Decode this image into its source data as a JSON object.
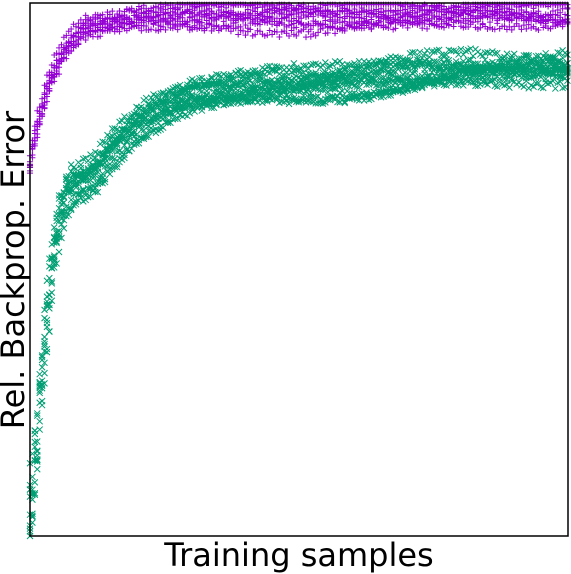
{
  "chart_data": {
    "type": "scatter",
    "title": "",
    "xlabel": "Training samples",
    "ylabel": "Rel. Backprop. Error",
    "x_ticks": [],
    "y_ticks": [],
    "grid": false,
    "legend": "none",
    "xlim": [
      0,
      100
    ],
    "ylim": [
      0,
      100
    ],
    "series": [
      {
        "marker": "plus",
        "color": "#9400D3",
        "runs": 8,
        "curve": [
          [
            0,
            70
          ],
          [
            1,
            76
          ],
          [
            2,
            80
          ],
          [
            3,
            84
          ],
          [
            4,
            87
          ],
          [
            6,
            91
          ],
          [
            8,
            94
          ],
          [
            10,
            96
          ],
          [
            15,
            97
          ],
          [
            20,
            97.5
          ],
          [
            30,
            97.5
          ],
          [
            40,
            97.5
          ],
          [
            50,
            97.8
          ],
          [
            60,
            98
          ],
          [
            70,
            98
          ],
          [
            80,
            98
          ],
          [
            90,
            98
          ],
          [
            100,
            98
          ]
        ]
      },
      {
        "marker": "x",
        "color": "#009E73",
        "runs": 10,
        "curve": [
          [
            0,
            5
          ],
          [
            1,
            15
          ],
          [
            2,
            28
          ],
          [
            3,
            40
          ],
          [
            4,
            50
          ],
          [
            5,
            58
          ],
          [
            6,
            62
          ],
          [
            7,
            65
          ],
          [
            8,
            66
          ],
          [
            10,
            67
          ],
          [
            12,
            68
          ],
          [
            15,
            72
          ],
          [
            20,
            77
          ],
          [
            25,
            80
          ],
          [
            30,
            82
          ],
          [
            40,
            84
          ],
          [
            50,
            85
          ],
          [
            60,
            85.5
          ],
          [
            70,
            86.5
          ],
          [
            80,
            87.5
          ],
          [
            90,
            88
          ],
          [
            100,
            88.5
          ]
        ]
      }
    ]
  }
}
